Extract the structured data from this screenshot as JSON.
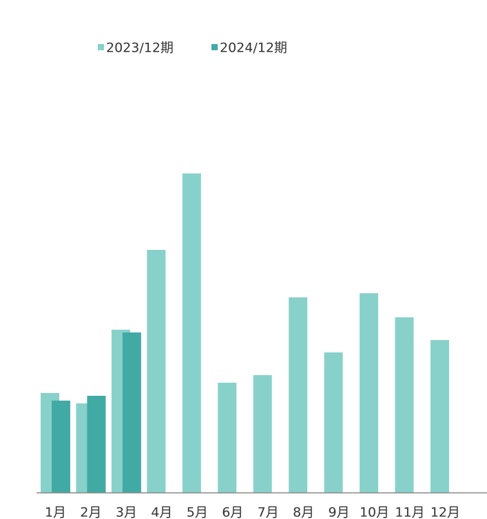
{
  "chart_data": {
    "type": "bar",
    "categories": [
      "1月",
      "2月",
      "3月",
      "4月",
      "5月",
      "6月",
      "7月",
      "8月",
      "9月",
      "10月",
      "11月",
      "12月"
    ],
    "series": [
      {
        "name": "2023/12期",
        "color": "#88d1cb",
        "values": [
          145,
          130,
          237,
          353,
          464,
          160,
          171,
          284,
          204,
          290,
          255,
          222
        ]
      },
      {
        "name": "2024/12期",
        "color": "#42aaa5",
        "values": [
          134,
          141,
          233,
          null,
          null,
          null,
          null,
          null,
          null,
          null,
          null,
          null
        ]
      }
    ],
    "ylim": [
      0,
      500
    ],
    "legend": "top"
  }
}
